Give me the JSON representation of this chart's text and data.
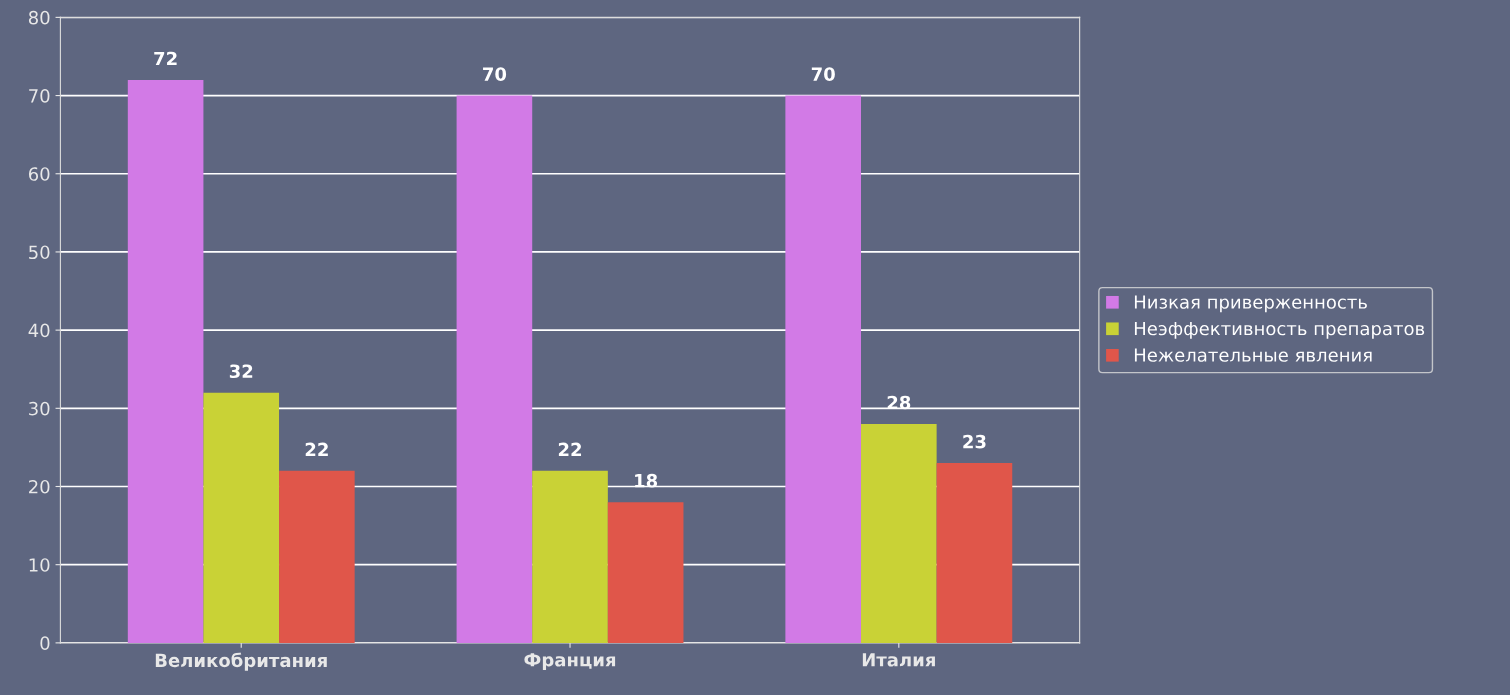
{
  "chart_data": {
    "type": "bar",
    "categories": [
      "Великобритания",
      "Франция",
      "Италия"
    ],
    "series": [
      {
        "name": "Низкая приверженность",
        "color": "#d27ae6",
        "values": [
          72,
          70,
          70
        ]
      },
      {
        "name": "Неэффективность препаратов",
        "color": "#c9d236",
        "values": [
          32,
          22,
          28
        ]
      },
      {
        "name": "Нежелательные явления",
        "color": "#e0564a",
        "values": [
          22,
          18,
          23
        ]
      }
    ],
    "ylim": [
      0,
      80
    ],
    "yticks": [
      0,
      10,
      20,
      30,
      40,
      50,
      60,
      70,
      80
    ],
    "grid": "y",
    "legend": "right",
    "data_labels": true
  }
}
